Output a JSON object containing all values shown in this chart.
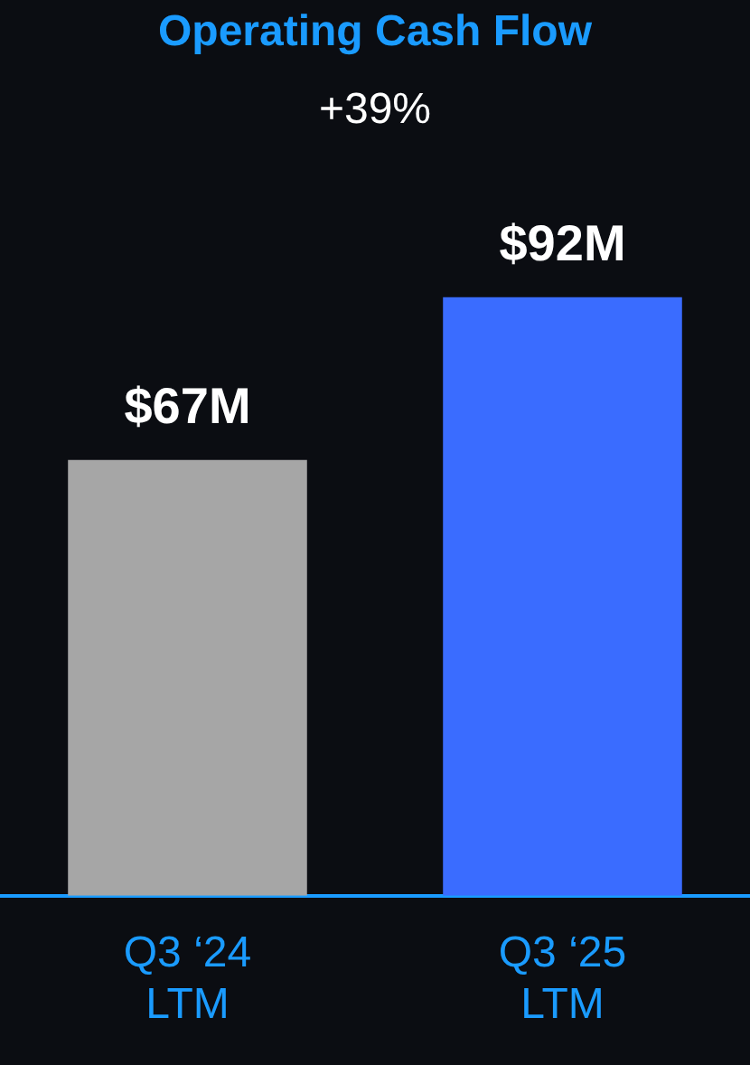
{
  "chart_data": {
    "type": "bar",
    "title": "Operating Cash Flow",
    "subtitle": "+39%",
    "categories": [
      "Q3 ‘24 LTM",
      "Q3 ‘25 LTM"
    ],
    "values": [
      67,
      92
    ],
    "colors": [
      "#a6a6a6",
      "#3a6cff"
    ],
    "value_labels": [
      "$67M",
      "$92M"
    ]
  }
}
